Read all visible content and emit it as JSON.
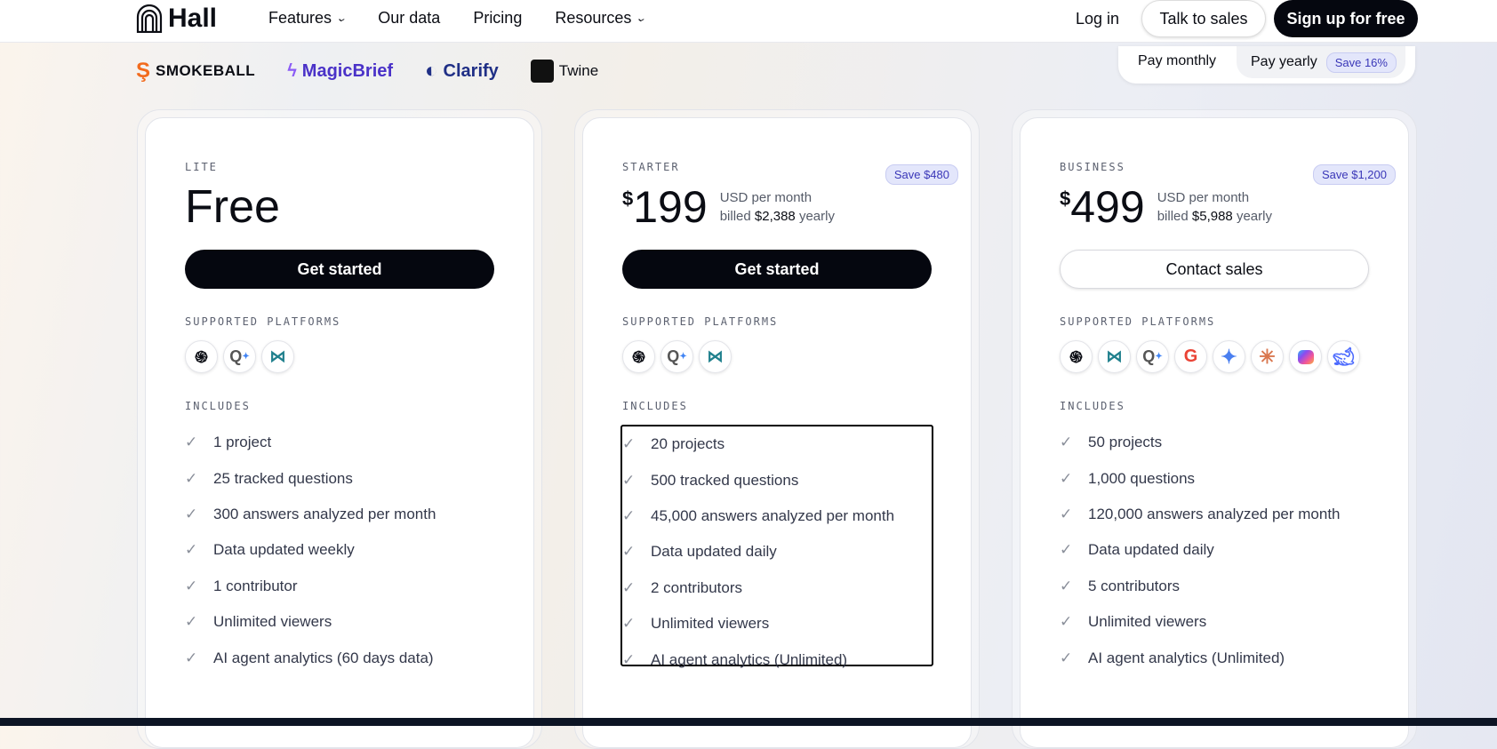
{
  "nav": {
    "logo": "Hall",
    "links": [
      "Features",
      "Our data",
      "Pricing",
      "Resources"
    ],
    "login": "Log in",
    "talk": "Talk to sales",
    "signup": "Sign up for free"
  },
  "brands": [
    "SMOKEBALL",
    "MagicBrief",
    "Clarify",
    "Twine"
  ],
  "billing": {
    "monthly": "Pay monthly",
    "yearly": "Pay yearly",
    "save": "Save 16%"
  },
  "plans": [
    {
      "tier": "LITE",
      "price": "Free",
      "cta": "Get started",
      "platforms_label": "SUPPORTED PLATFORMS",
      "platforms": [
        "openai-icon",
        "google-lens-icon",
        "perplexity-icon"
      ],
      "includes_label": "INCLUDES",
      "features": [
        "1 project",
        "25 tracked questions",
        "300 answers analyzed per month",
        "Data updated weekly",
        "1 contributor",
        "Unlimited viewers",
        "AI agent analytics (60 days data)"
      ]
    },
    {
      "tier": "STARTER",
      "currency": "$",
      "price": "199",
      "per": "USD per month",
      "billed_pre": "billed",
      "billed": "$2,388",
      "billed_post": "yearly",
      "save": "Save $480",
      "cta": "Get started",
      "platforms_label": "SUPPORTED PLATFORMS",
      "platforms": [
        "openai-icon",
        "google-lens-icon",
        "perplexity-icon"
      ],
      "includes_label": "INCLUDES",
      "features": [
        "20 projects",
        "500 tracked questions",
        "45,000 answers analyzed per month",
        "Data updated daily",
        "2 contributors",
        "Unlimited viewers",
        "AI agent analytics (Unlimited)"
      ]
    },
    {
      "tier": "BUSINESS",
      "currency": "$",
      "price": "499",
      "per": "USD per month",
      "billed_pre": "billed",
      "billed": "$5,988",
      "billed_post": "yearly",
      "save": "Save $1,200",
      "cta": "Contact sales",
      "platforms_label": "SUPPORTED PLATFORMS",
      "platforms": [
        "openai-icon",
        "perplexity-icon",
        "google-lens-icon",
        "google-icon",
        "gemini-icon",
        "claude-icon",
        "copilot-icon",
        "deepseek-icon"
      ],
      "includes_label": "INCLUDES",
      "features": [
        "50 projects",
        "1,000 questions",
        "120,000 answers analyzed per month",
        "Data updated daily",
        "5 contributors",
        "Unlimited viewers",
        "AI agent analytics (Unlimited)"
      ]
    }
  ]
}
